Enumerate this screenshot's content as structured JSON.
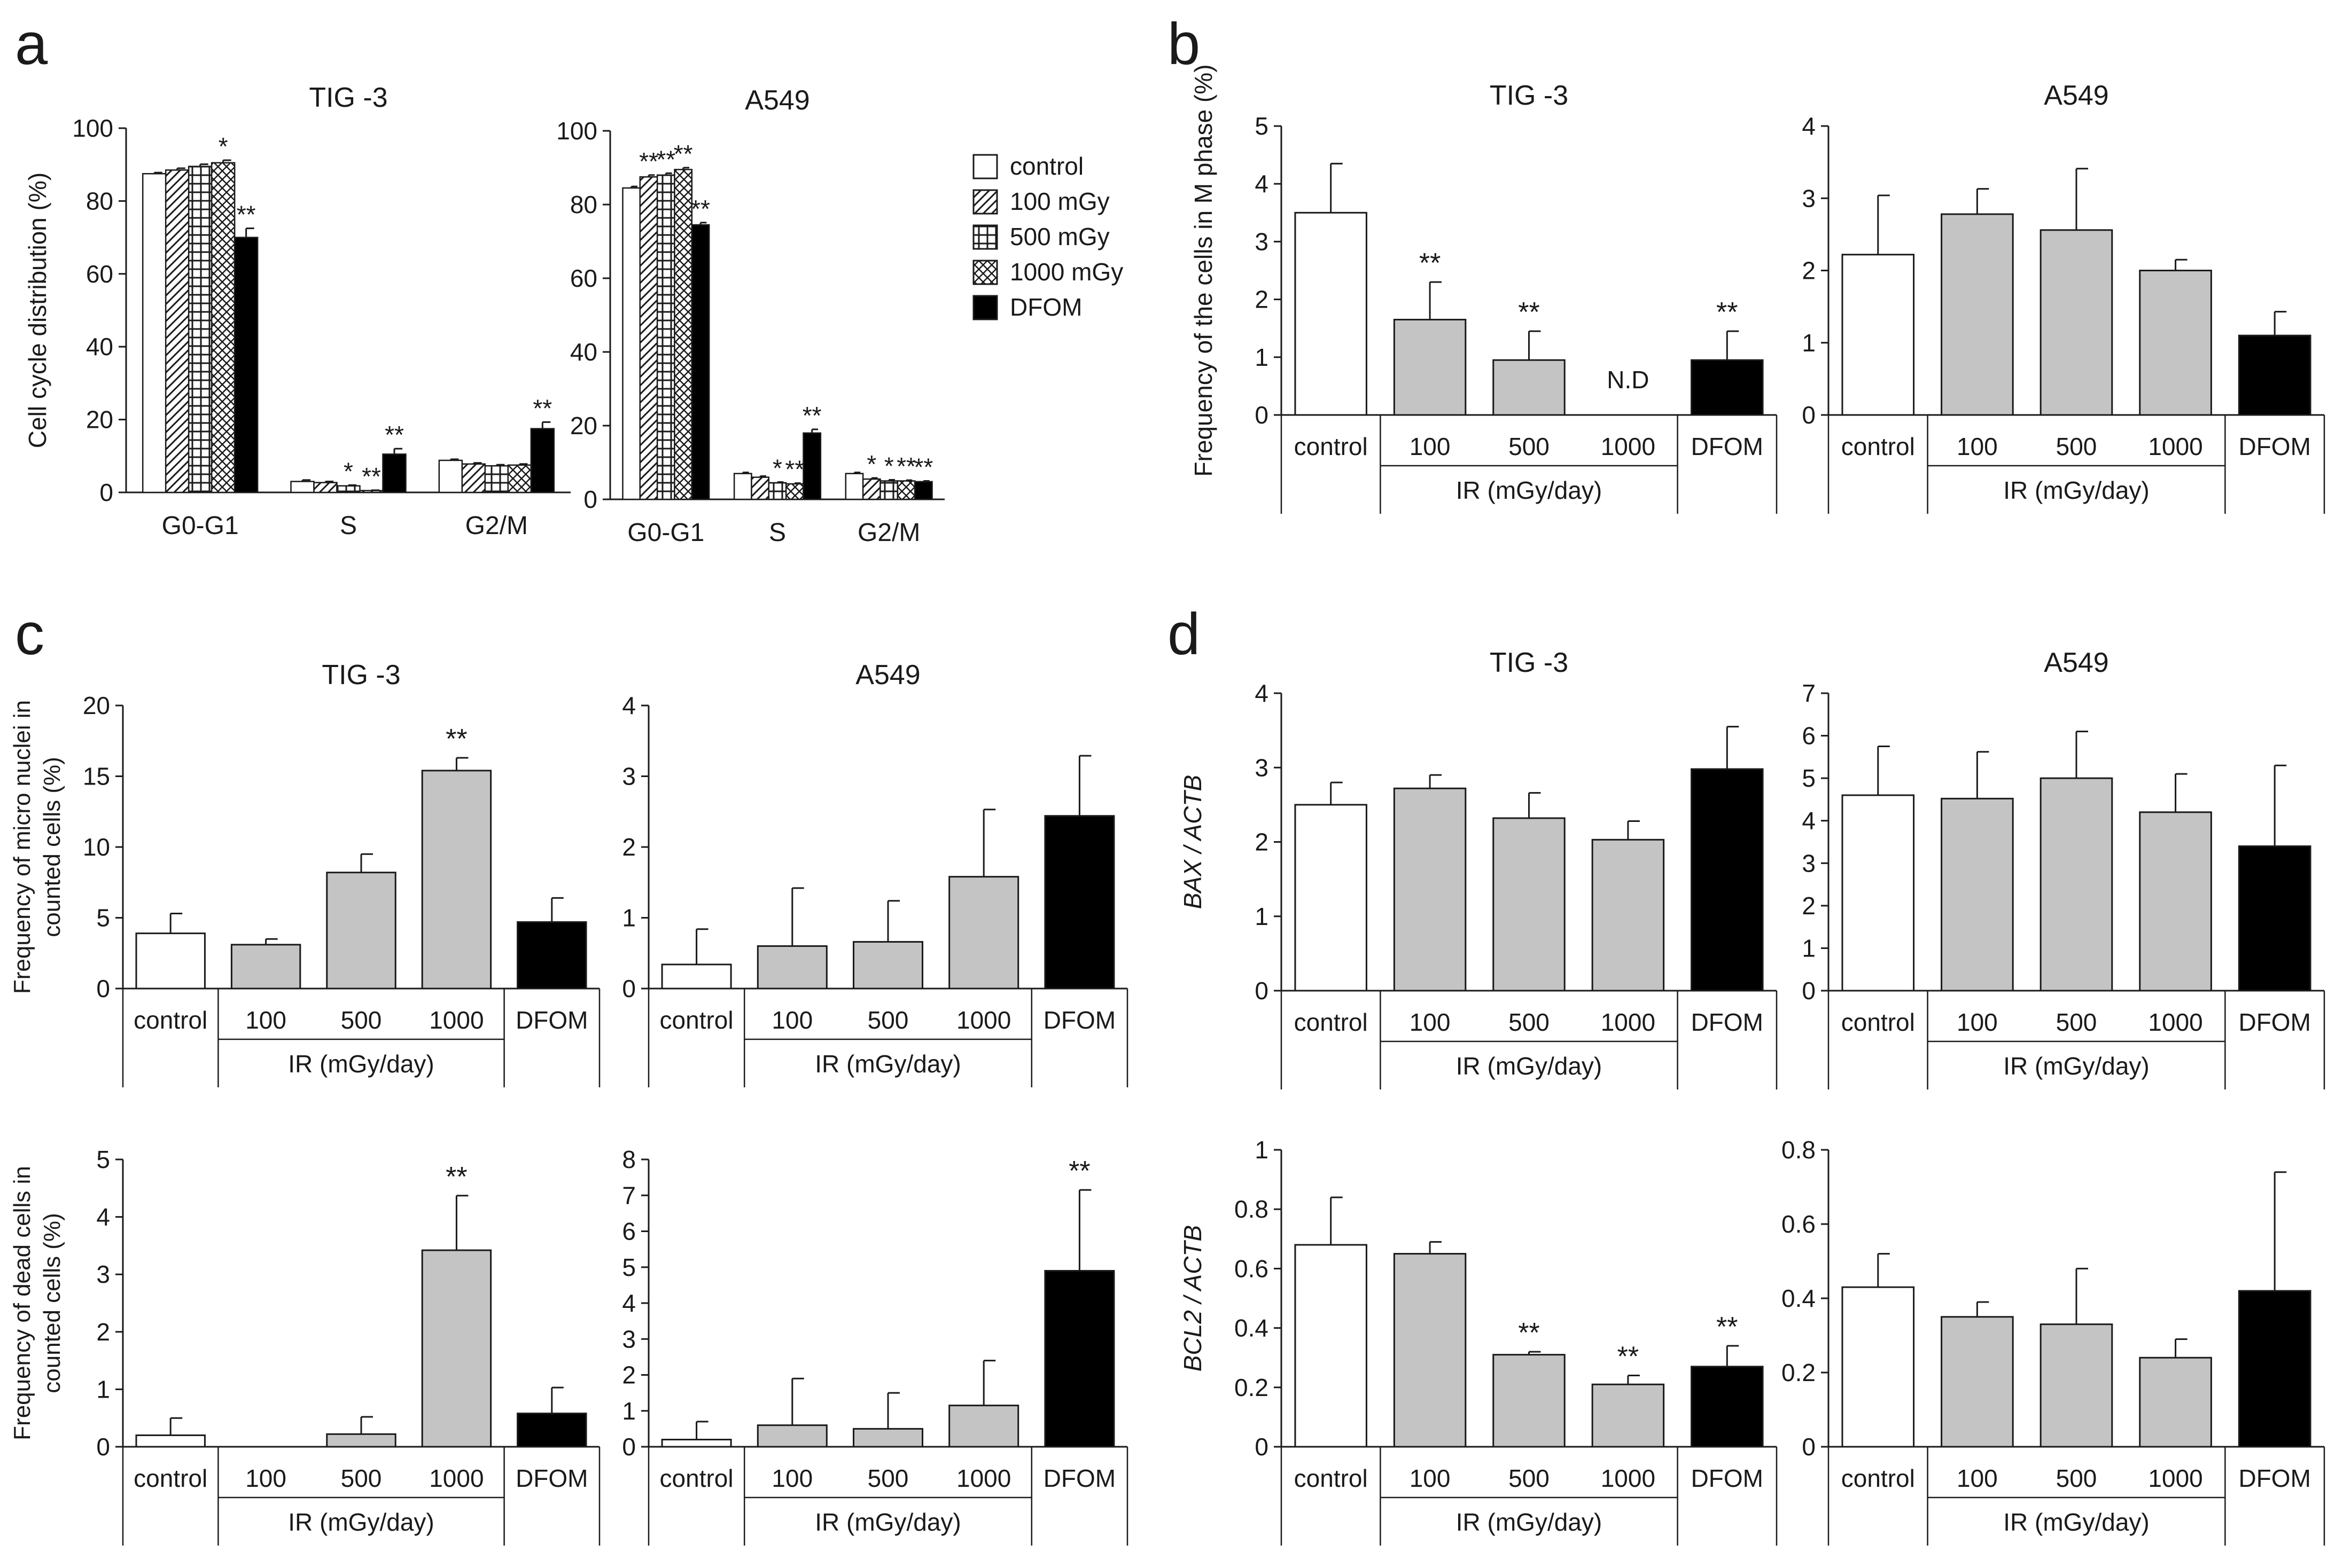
{
  "panel_labels": [
    "a",
    "b",
    "c",
    "d"
  ],
  "colors": {
    "control": "#ffffff",
    "irradiated": "#c4c4c4",
    "dfom": "#000000",
    "ink": "#1a1a1a"
  },
  "legend": {
    "items": [
      {
        "label": "control",
        "pattern": "white"
      },
      {
        "label": "100 mGy",
        "pattern": "diagonal-hatch"
      },
      {
        "label": "500 mGy",
        "pattern": "grid"
      },
      {
        "label": "1000 mGy",
        "pattern": "cross-hatch"
      },
      {
        "label": "DFOM",
        "pattern": "black"
      }
    ]
  },
  "chart_data": [
    {
      "id": "a-tig3",
      "panel": "a",
      "type": "bar",
      "title": "TIG -3",
      "ylabel": "Cell cycle distribution (%)",
      "ylim": [
        0,
        100
      ],
      "yticks": [
        0,
        20,
        40,
        60,
        80,
        100
      ],
      "categories": [
        "G0-G1",
        "S",
        "G2/M"
      ],
      "series": [
        {
          "name": "control",
          "values": [
            87.5,
            3.0,
            8.8
          ],
          "err": [
            0.3,
            0.4,
            0.3
          ],
          "sig": [
            "",
            "",
            ""
          ]
        },
        {
          "name": "100 mGy",
          "values": [
            88.5,
            2.7,
            7.8
          ],
          "err": [
            0.5,
            0.3,
            0.3
          ],
          "sig": [
            "",
            "",
            ""
          ]
        },
        {
          "name": "500 mGy",
          "values": [
            89.5,
            1.8,
            7.3
          ],
          "err": [
            0.6,
            0.2,
            0.3
          ],
          "sig": [
            "",
            "*",
            ""
          ]
        },
        {
          "name": "1000 mGy",
          "values": [
            90.5,
            0.5,
            7.5
          ],
          "err": [
            0.7,
            0.1,
            0.3
          ],
          "sig": [
            "*",
            "**",
            ""
          ]
        },
        {
          "name": "DFOM",
          "values": [
            70.0,
            10.5,
            17.5
          ],
          "err": [
            2.5,
            1.5,
            1.8
          ],
          "sig": [
            "**",
            "**",
            "**"
          ]
        }
      ]
    },
    {
      "id": "a-a549",
      "panel": "a",
      "type": "bar",
      "title": "A549",
      "ylabel": "",
      "ylim": [
        0,
        100
      ],
      "yticks": [
        0,
        20,
        40,
        60,
        80,
        100
      ],
      "categories": [
        "G0-G1",
        "S",
        "G2/M"
      ],
      "series": [
        {
          "name": "control",
          "values": [
            84.5,
            7.0,
            7.0
          ],
          "err": [
            0.4,
            0.3,
            0.3
          ],
          "sig": [
            "",
            "",
            ""
          ]
        },
        {
          "name": "100 mGy",
          "values": [
            87.5,
            6.0,
            5.5
          ],
          "err": [
            0.5,
            0.3,
            0.3
          ],
          "sig": [
            "**",
            "",
            "*"
          ]
        },
        {
          "name": "500 mGy",
          "values": [
            88.0,
            4.5,
            5.0
          ],
          "err": [
            0.5,
            0.2,
            0.3
          ],
          "sig": [
            "**",
            "*",
            "*"
          ]
        },
        {
          "name": "1000 mGy",
          "values": [
            89.5,
            4.2,
            5.0
          ],
          "err": [
            0.5,
            0.2,
            0.2
          ],
          "sig": [
            "**",
            "**",
            "**"
          ]
        },
        {
          "name": "DFOM",
          "values": [
            74.5,
            18.0,
            4.8
          ],
          "err": [
            0.6,
            1.0,
            0.2
          ],
          "sig": [
            "**",
            "**",
            "**"
          ]
        }
      ]
    },
    {
      "id": "b-tig3",
      "panel": "b",
      "type": "bar",
      "title": "TIG -3",
      "ylabel": "Frequency of the cells in M phase (%)",
      "ylim": [
        0,
        5
      ],
      "yticks": [
        0,
        1,
        2,
        3,
        4,
        5
      ],
      "categories": [
        "control",
        "100",
        "500",
        "1000",
        "DFOM"
      ],
      "values": [
        3.5,
        1.65,
        0.95,
        0,
        0.95
      ],
      "err": [
        0.85,
        0.65,
        0.5,
        0,
        0.5
      ],
      "sig": [
        "",
        "**",
        "**",
        "",
        "**"
      ],
      "notes": [
        "",
        "",
        "",
        "N.D",
        ""
      ],
      "group_label": "IR (mGy/day)"
    },
    {
      "id": "b-a549",
      "panel": "b",
      "type": "bar",
      "title": "A549",
      "ylabel": "",
      "ylim": [
        0,
        4
      ],
      "yticks": [
        0,
        1,
        2,
        3,
        4
      ],
      "categories": [
        "control",
        "100",
        "500",
        "1000",
        "DFOM"
      ],
      "values": [
        2.22,
        2.78,
        2.56,
        2.0,
        1.1
      ],
      "err": [
        0.82,
        0.35,
        0.85,
        0.15,
        0.33
      ],
      "sig": [
        "",
        "",
        "",
        "",
        ""
      ],
      "notes": [
        "",
        "",
        "",
        "",
        ""
      ],
      "group_label": "IR (mGy/day)"
    },
    {
      "id": "c-tig3-micro",
      "panel": "c",
      "type": "bar",
      "title": "TIG -3",
      "ylabel": "Frequency of micro nuclei in counted cells (%)",
      "ylim": [
        0,
        20
      ],
      "yticks": [
        0,
        5,
        10,
        15,
        20
      ],
      "categories": [
        "control",
        "100",
        "500",
        "1000",
        "DFOM"
      ],
      "values": [
        3.9,
        3.1,
        8.2,
        15.4,
        4.7
      ],
      "err": [
        1.4,
        0.4,
        1.3,
        0.9,
        1.7
      ],
      "sig": [
        "",
        "",
        "",
        "**",
        ""
      ],
      "notes": [
        "",
        "",
        "",
        "",
        ""
      ],
      "group_label": "IR (mGy/day)"
    },
    {
      "id": "c-a549-micro",
      "panel": "c",
      "type": "bar",
      "title": "A549",
      "ylabel": "",
      "ylim": [
        0,
        4
      ],
      "yticks": [
        0,
        1,
        2,
        3,
        4
      ],
      "categories": [
        "control",
        "100",
        "500",
        "1000",
        "DFOM"
      ],
      "values": [
        0.34,
        0.6,
        0.66,
        1.58,
        2.44
      ],
      "err": [
        0.5,
        0.82,
        0.58,
        0.95,
        0.85
      ],
      "sig": [
        "",
        "",
        "",
        "",
        ""
      ],
      "notes": [
        "",
        "",
        "",
        "",
        ""
      ],
      "group_label": "IR (mGy/day)"
    },
    {
      "id": "c-tig3-dead",
      "panel": "c",
      "type": "bar",
      "title": "",
      "ylabel": "Frequency of dead cells in counted cells (%)",
      "ylim": [
        0,
        5
      ],
      "yticks": [
        0,
        1,
        2,
        3,
        4,
        5
      ],
      "categories": [
        "control",
        "100",
        "500",
        "1000",
        "DFOM"
      ],
      "values": [
        0.2,
        0,
        0.22,
        3.42,
        0.58
      ],
      "err": [
        0.3,
        0,
        0.3,
        0.95,
        0.45
      ],
      "sig": [
        "",
        "",
        "",
        "**",
        ""
      ],
      "notes": [
        "",
        "",
        "",
        "",
        ""
      ],
      "group_label": "IR (mGy/day)"
    },
    {
      "id": "c-a549-dead",
      "panel": "c",
      "type": "bar",
      "title": "",
      "ylabel": "",
      "ylim": [
        0,
        8
      ],
      "yticks": [
        0,
        1,
        2,
        3,
        4,
        5,
        6,
        7,
        8
      ],
      "categories": [
        "control",
        "100",
        "500",
        "1000",
        "DFOM"
      ],
      "values": [
        0.2,
        0.6,
        0.5,
        1.15,
        4.9
      ],
      "err": [
        0.5,
        1.3,
        1.0,
        1.25,
        2.25
      ],
      "sig": [
        "",
        "",
        "",
        "",
        "**"
      ],
      "notes": [
        "",
        "",
        "",
        "",
        ""
      ],
      "group_label": "IR (mGy/day)"
    },
    {
      "id": "d-tig3-bax",
      "panel": "d",
      "type": "bar",
      "title": "TIG -3",
      "ylabel": "BAX / ACTB",
      "ylim": [
        0,
        4
      ],
      "yticks": [
        0,
        1,
        2,
        3,
        4
      ],
      "categories": [
        "control",
        "100",
        "500",
        "1000",
        "DFOM"
      ],
      "values": [
        2.5,
        2.72,
        2.32,
        2.03,
        2.98
      ],
      "err": [
        0.3,
        0.18,
        0.34,
        0.25,
        0.57
      ],
      "sig": [
        "",
        "",
        "",
        "",
        ""
      ],
      "notes": [
        "",
        "",
        "",
        "",
        ""
      ],
      "group_label": "IR (mGy/day)"
    },
    {
      "id": "d-a549-bax",
      "panel": "d",
      "type": "bar",
      "title": "A549",
      "ylabel": "",
      "ylim": [
        0,
        7
      ],
      "yticks": [
        0,
        1,
        2,
        3,
        4,
        5,
        6,
        7
      ],
      "categories": [
        "control",
        "100",
        "500",
        "1000",
        "DFOM"
      ],
      "values": [
        4.6,
        4.52,
        5.0,
        4.2,
        3.4
      ],
      "err": [
        1.15,
        1.1,
        1.1,
        0.9,
        1.9
      ],
      "sig": [
        "",
        "",
        "",
        "",
        ""
      ],
      "notes": [
        "",
        "",
        "",
        "",
        ""
      ],
      "group_label": "IR (mGy/day)"
    },
    {
      "id": "d-tig3-bcl2",
      "panel": "d",
      "type": "bar",
      "title": "",
      "ylabel": "BCL2 / ACTB",
      "ylim": [
        0,
        1
      ],
      "yticks": [
        0,
        0.2,
        0.4,
        0.6,
        0.8,
        1
      ],
      "categories": [
        "control",
        "100",
        "500",
        "1000",
        "DFOM"
      ],
      "values": [
        0.68,
        0.65,
        0.31,
        0.21,
        0.27
      ],
      "err": [
        0.16,
        0.04,
        0.01,
        0.03,
        0.07
      ],
      "sig": [
        "",
        "",
        "**",
        "**",
        "**"
      ],
      "notes": [
        "",
        "",
        "",
        "",
        ""
      ],
      "group_label": "IR (mGy/day)"
    },
    {
      "id": "d-a549-bcl2",
      "panel": "d",
      "type": "bar",
      "title": "",
      "ylabel": "",
      "ylim": [
        0,
        0.8
      ],
      "yticks": [
        0,
        0.2,
        0.4,
        0.6,
        0.8
      ],
      "categories": [
        "control",
        "100",
        "500",
        "1000",
        "DFOM"
      ],
      "values": [
        0.43,
        0.35,
        0.33,
        0.24,
        0.42
      ],
      "err": [
        0.09,
        0.04,
        0.15,
        0.05,
        0.32
      ],
      "sig": [
        "",
        "",
        "",
        "",
        ""
      ],
      "notes": [
        "",
        "",
        "",
        "",
        ""
      ],
      "group_label": "IR (mGy/day)"
    }
  ]
}
